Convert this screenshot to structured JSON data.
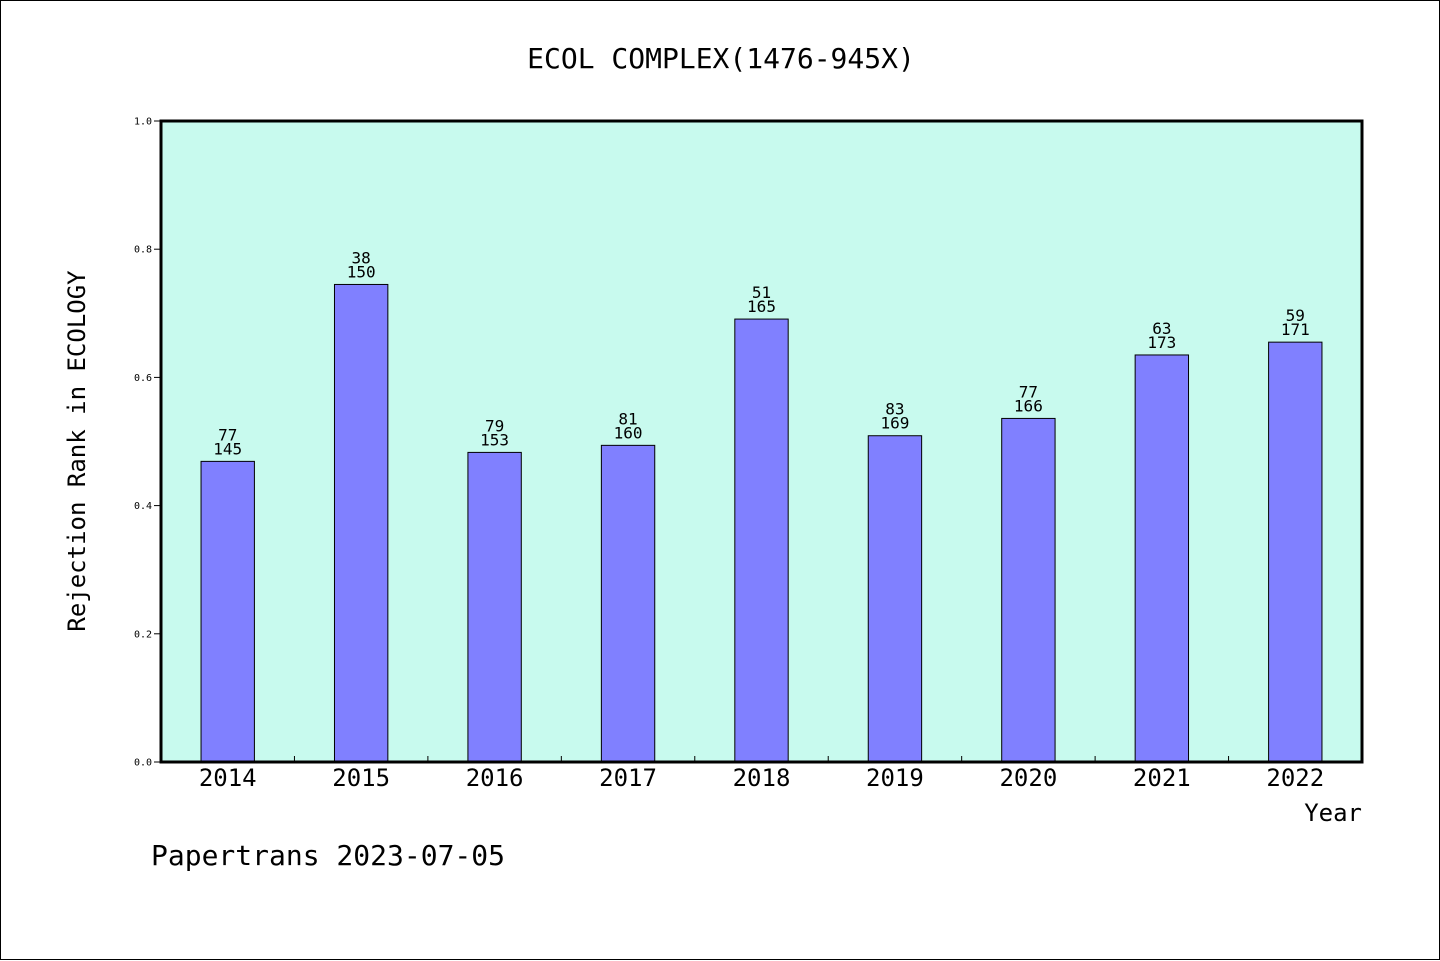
{
  "chart_data": {
    "type": "bar",
    "title": "ECOL COMPLEX(1476-945X)",
    "xlabel": "Year",
    "ylabel": "Rejection Rank in ECOLOGY",
    "ylim": [
      0.0,
      1.0
    ],
    "yticks": [
      "0.0",
      "0.2",
      "0.4",
      "0.6",
      "0.8",
      "1.0"
    ],
    "grid": false,
    "colors": {
      "plot_background": "#c8faee",
      "bar_fill": "#8080ff",
      "bar_edge": "#000000"
    },
    "categories": [
      "2014",
      "2015",
      "2016",
      "2017",
      "2018",
      "2019",
      "2020",
      "2021",
      "2022"
    ],
    "values": [
      0.469,
      0.745,
      0.483,
      0.494,
      0.691,
      0.509,
      0.536,
      0.635,
      0.655
    ],
    "labels_top": [
      "77",
      "38",
      "79",
      "81",
      "51",
      "83",
      "77",
      "63",
      "59"
    ],
    "labels_bottom": [
      "145",
      "150",
      "153",
      "160",
      "165",
      "169",
      "166",
      "173",
      "171"
    ]
  },
  "footer": "Papertrans 2023-07-05"
}
